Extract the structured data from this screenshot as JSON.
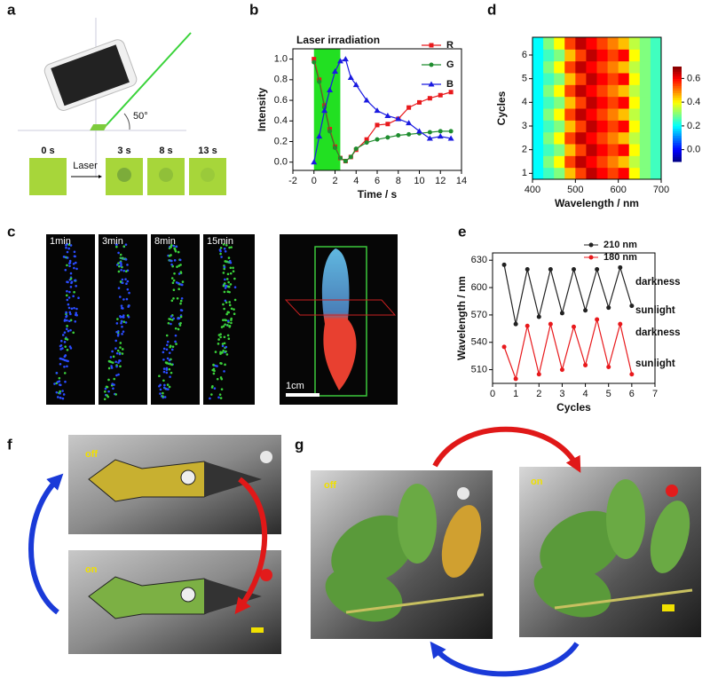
{
  "panels": [
    "a",
    "b",
    "c",
    "d",
    "e",
    "f",
    "g"
  ],
  "panel_a": {
    "laser_source": "Laser source",
    "angle": "50°",
    "times": [
      "0 s",
      "3 s",
      "8 s",
      "13 s"
    ],
    "arrow": "Laser"
  },
  "panel_c": {
    "times": [
      "1min",
      "3min",
      "8min",
      "15min"
    ],
    "scale": "1cm"
  },
  "panel_f": {
    "states": [
      "off",
      "on"
    ]
  },
  "panel_g": {
    "states": [
      "off",
      "on"
    ]
  },
  "chart_data": [
    {
      "type": "line",
      "annotation": "Laser irradiation",
      "shaded_span": [
        0,
        2.5
      ],
      "shade_color": "#22e022",
      "xlabel": "Time / s",
      "ylabel": "Intensity",
      "x": [
        0,
        0.5,
        1,
        1.5,
        2,
        2.5,
        3,
        3.5,
        4,
        5,
        6,
        7,
        8,
        9,
        10,
        11,
        12,
        13
      ],
      "series": [
        {
          "name": "R",
          "color": "#e8191c",
          "marker": "square",
          "values": [
            1.0,
            0.8,
            0.55,
            0.32,
            0.15,
            0.04,
            0.01,
            0.05,
            0.12,
            0.22,
            0.36,
            0.37,
            0.42,
            0.53,
            0.58,
            0.62,
            0.65,
            0.68
          ]
        },
        {
          "name": "G",
          "color": "#1e8c2e",
          "marker": "circle",
          "values": [
            0.97,
            0.78,
            0.53,
            0.3,
            0.14,
            0.04,
            0.01,
            0.05,
            0.13,
            0.19,
            0.22,
            0.24,
            0.26,
            0.27,
            0.28,
            0.29,
            0.3,
            0.3
          ]
        },
        {
          "name": "B",
          "color": "#1a1ae0",
          "marker": "triangle",
          "values": [
            0,
            0.25,
            0.5,
            0.7,
            0.88,
            0.98,
            1.0,
            0.82,
            0.75,
            0.6,
            0.5,
            0.45,
            0.42,
            0.38,
            0.3,
            0.23,
            0.25,
            0.23
          ]
        }
      ],
      "xlim": [
        -2,
        14
      ],
      "xticks": [
        -2,
        0,
        2,
        4,
        6,
        8,
        10,
        12,
        14
      ],
      "ylim": [
        -0.08,
        1.1
      ],
      "yticks": [
        {
          "value": 0,
          "label": "0.0"
        },
        0.2,
        0.4,
        0.6,
        0.8,
        {
          "value": 1,
          "label": "1.0"
        }
      ],
      "legend": "upper right"
    },
    {
      "type": "heatmap",
      "xlabel": "Wavelength / nm",
      "ylabel": "Cycles",
      "colormap": "jet",
      "xbins": [
        400,
        425,
        450,
        475,
        500,
        525,
        550,
        575,
        600,
        625,
        650,
        675,
        700
      ],
      "ybins": [
        0.75,
        1.25,
        1.75,
        2.25,
        2.75,
        3.25,
        3.75,
        4.25,
        4.75,
        5.25,
        5.75,
        6.25,
        6.75
      ],
      "values": [
        [
          0.2,
          0.25,
          0.3,
          0.45,
          0.55,
          0.65,
          0.6,
          0.55,
          0.6,
          0.4,
          0.3,
          0.25
        ],
        [
          0.2,
          0.3,
          0.4,
          0.55,
          0.65,
          0.6,
          0.55,
          0.5,
          0.45,
          0.35,
          0.3,
          0.25
        ],
        [
          0.2,
          0.25,
          0.3,
          0.45,
          0.55,
          0.65,
          0.6,
          0.55,
          0.6,
          0.4,
          0.3,
          0.25
        ],
        [
          0.2,
          0.3,
          0.4,
          0.55,
          0.65,
          0.6,
          0.55,
          0.5,
          0.45,
          0.35,
          0.3,
          0.25
        ],
        [
          0.2,
          0.25,
          0.3,
          0.45,
          0.55,
          0.65,
          0.6,
          0.55,
          0.6,
          0.4,
          0.3,
          0.25
        ],
        [
          0.2,
          0.3,
          0.4,
          0.55,
          0.65,
          0.6,
          0.55,
          0.5,
          0.45,
          0.35,
          0.3,
          0.25
        ],
        [
          0.2,
          0.25,
          0.3,
          0.45,
          0.55,
          0.65,
          0.6,
          0.55,
          0.6,
          0.4,
          0.3,
          0.25
        ],
        [
          0.2,
          0.3,
          0.4,
          0.55,
          0.65,
          0.6,
          0.55,
          0.5,
          0.45,
          0.35,
          0.3,
          0.25
        ],
        [
          0.2,
          0.25,
          0.3,
          0.45,
          0.55,
          0.65,
          0.6,
          0.55,
          0.6,
          0.4,
          0.3,
          0.25
        ],
        [
          0.2,
          0.3,
          0.4,
          0.55,
          0.65,
          0.6,
          0.55,
          0.5,
          0.45,
          0.35,
          0.3,
          0.25
        ],
        [
          0.2,
          0.25,
          0.3,
          0.45,
          0.55,
          0.65,
          0.6,
          0.55,
          0.6,
          0.4,
          0.3,
          0.25
        ],
        [
          0.2,
          0.3,
          0.4,
          0.55,
          0.65,
          0.6,
          0.55,
          0.5,
          0.45,
          0.35,
          0.3,
          0.25
        ]
      ],
      "xlim": [
        400,
        700
      ],
      "xticks": [
        400,
        500,
        600,
        700
      ],
      "ylim": [
        0.75,
        6.75
      ],
      "yticks": [
        1,
        2,
        3,
        4,
        5,
        6
      ],
      "clim": [
        -0.1,
        0.7
      ],
      "cticks": [
        {
          "value": 0,
          "label": "0.0"
        },
        0.2,
        0.4,
        0.6
      ]
    },
    {
      "type": "line",
      "xlabel": "Cycles",
      "ylabel": "Wavelength / nm",
      "x": [
        0.5,
        1,
        1.5,
        2,
        2.5,
        3,
        3.5,
        4,
        4.5,
        5,
        5.5,
        6
      ],
      "series": [
        {
          "name": "210 nm",
          "color": "#222222",
          "values": [
            625,
            560,
            620,
            568,
            620,
            572,
            620,
            575,
            620,
            578,
            622,
            580
          ]
        },
        {
          "name": "180 nm",
          "color": "#e8191c",
          "values": [
            535,
            500,
            558,
            505,
            560,
            510,
            557,
            515,
            565,
            513,
            560,
            505
          ]
        }
      ],
      "annotations": [
        "darkness",
        "sunlight",
        "darkness",
        "sunlight"
      ],
      "xlim": [
        0,
        7
      ],
      "xticks": [
        0,
        1,
        2,
        3,
        4,
        5,
        6,
        7
      ],
      "ylim": [
        495,
        638
      ],
      "yticks": [
        510,
        540,
        570,
        600,
        630
      ]
    }
  ]
}
